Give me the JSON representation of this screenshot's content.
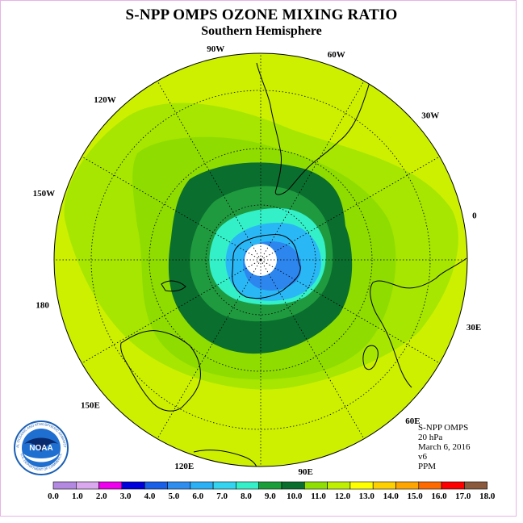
{
  "header": {
    "title": "S-NPP OMPS OZONE MIXING RATIO",
    "subtitle": "Southern Hemisphere"
  },
  "longitude_labels": [
    "90W",
    "60W",
    "30W",
    "0",
    "30E",
    "60E",
    "90E",
    "120E",
    "150E",
    "180",
    "150W",
    "120W"
  ],
  "info": {
    "instrument": "S-NPP OMPS",
    "pressure": "20 hPa",
    "date": "March 6, 2016",
    "version": "v6",
    "units": "PPM"
  },
  "logo": {
    "text": "NOAA",
    "ring_text": "NATIONAL OCEANIC AND ATMOSPHERIC ADMINISTRATION",
    "ring_text_bottom": "U.S. DEPARTMENT OF COMMERCE"
  },
  "colorbar": {
    "labels": [
      "0.0",
      "1.0",
      "2.0",
      "3.0",
      "4.0",
      "5.0",
      "6.0",
      "7.0",
      "8.0",
      "9.0",
      "10.0",
      "11.0",
      "12.0",
      "13.0",
      "14.0",
      "15.0",
      "16.0",
      "17.0",
      "18.0"
    ],
    "colors": [
      "#b388e0",
      "#d9a8ee",
      "#ee00ee",
      "#0000dd",
      "#1a5fe8",
      "#2f8df0",
      "#29b0f5",
      "#33d4f0",
      "#33f0c8",
      "#1a9e3a",
      "#0a6e2e",
      "#8fe000",
      "#bff000",
      "#ffff00",
      "#ffd000",
      "#ffa500",
      "#ff6a00",
      "#ff0000",
      "#8b5a3c"
    ]
  },
  "chart_data": {
    "type": "heatmap",
    "projection": "south polar stereographic",
    "grid": true,
    "contour_levels_ppm": [
      8.0,
      9.0,
      10.0,
      11.0,
      12.0
    ],
    "colors": {
      "outer": "#ccf000",
      "band_11_12": "#a6e600",
      "band_10_11": "#8fdc00",
      "band_9_10": "#0a6e2e",
      "band_8_9": "#1f9a3f",
      "band_7_8": "#33f0c8",
      "band_6_7": "#29b8f5",
      "band_5_6": "#2d86ee",
      "no_data": "#ffffff"
    }
  }
}
